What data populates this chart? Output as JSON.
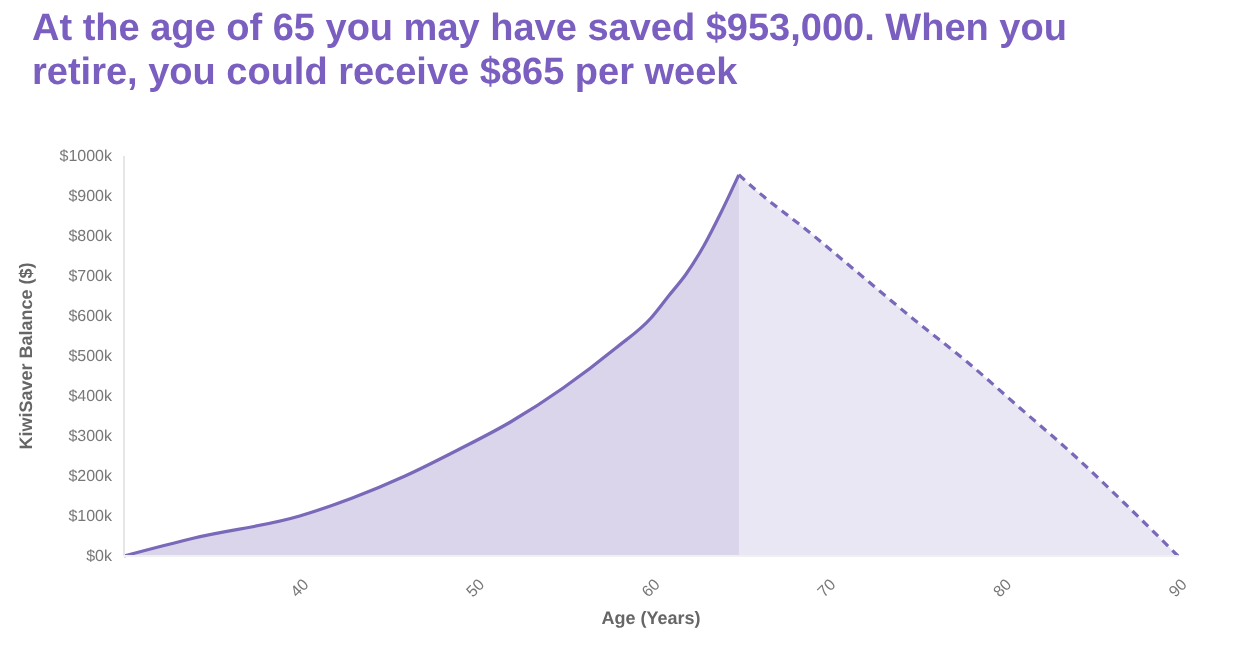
{
  "chart_data": {
    "type": "area",
    "title": "At the age of 65 you may have saved $953,000. When you retire, you could receive $865 per week",
    "xlabel": "Age (Years)",
    "ylabel": "KiwiSaver Balance ($)",
    "xlim": [
      30,
      90
    ],
    "xticks": [
      40,
      50,
      60,
      70,
      80,
      90
    ],
    "ylim": [
      0,
      1000
    ],
    "yticks": [
      {
        "value": 0,
        "label": "$0k"
      },
      {
        "value": 100,
        "label": "$100k"
      },
      {
        "value": 200,
        "label": "$200k"
      },
      {
        "value": 300,
        "label": "$300k"
      },
      {
        "value": 400,
        "label": "$400k"
      },
      {
        "value": 500,
        "label": "$500k"
      },
      {
        "value": 600,
        "label": "$600k"
      },
      {
        "value": 700,
        "label": "$700k"
      },
      {
        "value": 800,
        "label": "$800k"
      },
      {
        "value": 900,
        "label": "$900k"
      },
      {
        "value": 1000,
        "label": "$1000k"
      }
    ],
    "grid": false,
    "series": [
      {
        "color": "#7a68b8",
        "line_style": "solid",
        "x": [
          30,
          34,
          40,
          43,
          46,
          49,
          52,
          55,
          58,
          60,
          61,
          62,
          63,
          64,
          65
        ],
        "values": [
          0,
          45,
          100,
          145,
          200,
          265,
          335,
          420,
          520,
          595,
          650,
          705,
          775,
          860,
          953
        ]
      },
      {
        "color": "#7a68b8",
        "line_style": "dashed",
        "x": [
          65,
          66,
          69,
          72,
          75,
          78,
          81,
          84,
          87,
          90
        ],
        "values": [
          953,
          914,
          810,
          700,
          590,
          485,
          370,
          255,
          130,
          0
        ]
      }
    ]
  }
}
